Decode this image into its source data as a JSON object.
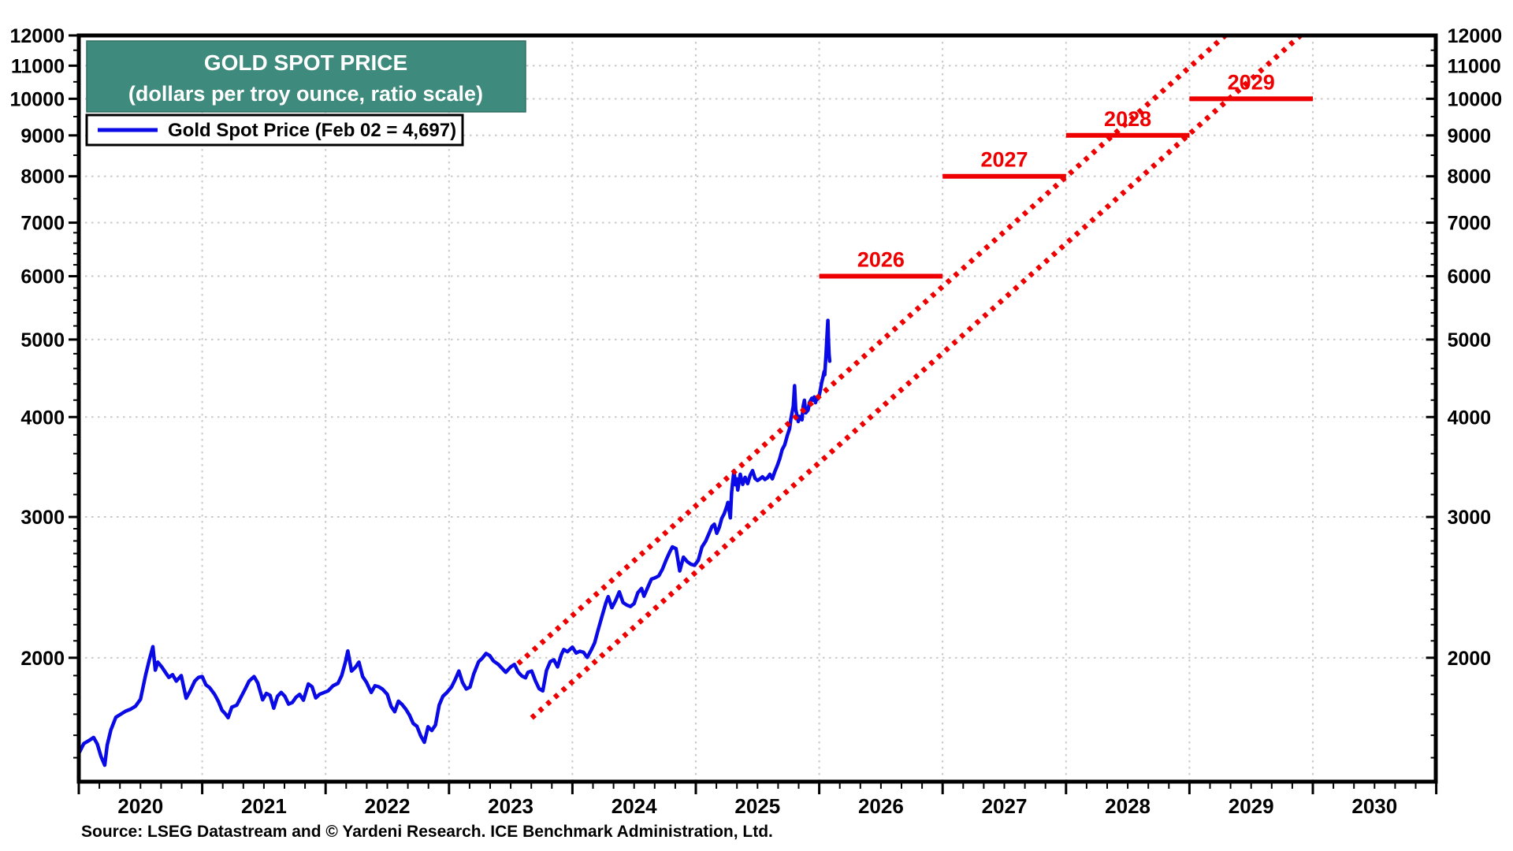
{
  "title": {
    "line1": "GOLD SPOT PRICE",
    "line2": "(dollars per troy ounce, ratio scale)"
  },
  "legend": {
    "label": "Gold Spot Price (Feb 02 = 4,697)"
  },
  "source": "Source: LSEG Datastream and © Yardeni Research. ICE Benchmark Administration, Ltd.",
  "colors": {
    "teal_box": "#3E8A7C",
    "teal_box_border": "#2E6E63",
    "line_blue": "#0A0AE6",
    "red": "#EE0000",
    "grid": "#C9C9C9",
    "axis": "#000000"
  },
  "chart_data": {
    "type": "line",
    "title": "GOLD SPOT PRICE",
    "subtitle": "(dollars per troy ounce, ratio scale)",
    "y_scale": "log",
    "ylim": [
      1400,
      12000
    ],
    "xlim": [
      2020,
      2031
    ],
    "grid": true,
    "legend_position": "top-left",
    "y_ticks": [
      2000,
      3000,
      4000,
      5000,
      6000,
      7000,
      8000,
      9000,
      10000,
      11000,
      12000
    ],
    "x_ticks": [
      2020,
      2021,
      2022,
      2023,
      2024,
      2025,
      2026,
      2027,
      2028,
      2029,
      2030
    ],
    "series": [
      {
        "name": "Gold Spot Price (Feb 02 = 4,697)",
        "last_point_label": "Feb 02 = 4,697",
        "points": [
          [
            2020.0,
            1518
          ],
          [
            2020.04,
            1562
          ],
          [
            2020.08,
            1575
          ],
          [
            2020.12,
            1590
          ],
          [
            2020.15,
            1560
          ],
          [
            2020.18,
            1505
          ],
          [
            2020.21,
            1468
          ],
          [
            2020.23,
            1555
          ],
          [
            2020.26,
            1625
          ],
          [
            2020.3,
            1685
          ],
          [
            2020.34,
            1700
          ],
          [
            2020.38,
            1715
          ],
          [
            2020.42,
            1725
          ],
          [
            2020.46,
            1740
          ],
          [
            2020.5,
            1775
          ],
          [
            2020.54,
            1900
          ],
          [
            2020.57,
            1985
          ],
          [
            2020.6,
            2065
          ],
          [
            2020.62,
            1930
          ],
          [
            2020.64,
            1975
          ],
          [
            2020.67,
            1950
          ],
          [
            2020.7,
            1920
          ],
          [
            2020.73,
            1890
          ],
          [
            2020.76,
            1905
          ],
          [
            2020.79,
            1870
          ],
          [
            2020.83,
            1900
          ],
          [
            2020.87,
            1780
          ],
          [
            2020.9,
            1815
          ],
          [
            2020.94,
            1870
          ],
          [
            2020.97,
            1890
          ],
          [
            2021.0,
            1895
          ],
          [
            2021.03,
            1850
          ],
          [
            2021.06,
            1835
          ],
          [
            2021.1,
            1800
          ],
          [
            2021.13,
            1765
          ],
          [
            2021.16,
            1720
          ],
          [
            2021.19,
            1700
          ],
          [
            2021.21,
            1683
          ],
          [
            2021.24,
            1735
          ],
          [
            2021.28,
            1745
          ],
          [
            2021.31,
            1780
          ],
          [
            2021.35,
            1830
          ],
          [
            2021.38,
            1870
          ],
          [
            2021.42,
            1895
          ],
          [
            2021.45,
            1860
          ],
          [
            2021.49,
            1772
          ],
          [
            2021.52,
            1805
          ],
          [
            2021.55,
            1795
          ],
          [
            2021.58,
            1730
          ],
          [
            2021.61,
            1790
          ],
          [
            2021.64,
            1810
          ],
          [
            2021.67,
            1790
          ],
          [
            2021.7,
            1750
          ],
          [
            2021.73,
            1758
          ],
          [
            2021.76,
            1785
          ],
          [
            2021.79,
            1800
          ],
          [
            2021.82,
            1770
          ],
          [
            2021.86,
            1855
          ],
          [
            2021.89,
            1840
          ],
          [
            2021.92,
            1782
          ],
          [
            2021.95,
            1800
          ],
          [
            2021.98,
            1808
          ],
          [
            2022.02,
            1818
          ],
          [
            2022.06,
            1845
          ],
          [
            2022.1,
            1858
          ],
          [
            2022.13,
            1900
          ],
          [
            2022.16,
            1975
          ],
          [
            2022.18,
            2040
          ],
          [
            2022.21,
            1925
          ],
          [
            2022.24,
            1945
          ],
          [
            2022.27,
            1975
          ],
          [
            2022.3,
            1895
          ],
          [
            2022.33,
            1865
          ],
          [
            2022.37,
            1810
          ],
          [
            2022.4,
            1845
          ],
          [
            2022.43,
            1840
          ],
          [
            2022.46,
            1828
          ],
          [
            2022.5,
            1800
          ],
          [
            2022.53,
            1740
          ],
          [
            2022.56,
            1712
          ],
          [
            2022.59,
            1765
          ],
          [
            2022.62,
            1748
          ],
          [
            2022.65,
            1725
          ],
          [
            2022.68,
            1695
          ],
          [
            2022.71,
            1655
          ],
          [
            2022.74,
            1642
          ],
          [
            2022.77,
            1598
          ],
          [
            2022.8,
            1568
          ],
          [
            2022.83,
            1640
          ],
          [
            2022.86,
            1622
          ],
          [
            2022.89,
            1648
          ],
          [
            2022.92,
            1745
          ],
          [
            2022.95,
            1790
          ],
          [
            2022.98,
            1808
          ],
          [
            2023.02,
            1838
          ],
          [
            2023.05,
            1878
          ],
          [
            2023.08,
            1925
          ],
          [
            2023.11,
            1862
          ],
          [
            2023.14,
            1828
          ],
          [
            2023.17,
            1838
          ],
          [
            2023.2,
            1908
          ],
          [
            2023.24,
            1978
          ],
          [
            2023.27,
            1998
          ],
          [
            2023.3,
            2025
          ],
          [
            2023.33,
            2012
          ],
          [
            2023.36,
            1982
          ],
          [
            2023.4,
            1962
          ],
          [
            2023.43,
            1940
          ],
          [
            2023.46,
            1918
          ],
          [
            2023.5,
            1948
          ],
          [
            2023.53,
            1962
          ],
          [
            2023.56,
            1920
          ],
          [
            2023.59,
            1898
          ],
          [
            2023.62,
            1888
          ],
          [
            2023.64,
            1918
          ],
          [
            2023.67,
            1925
          ],
          [
            2023.7,
            1872
          ],
          [
            2023.73,
            1830
          ],
          [
            2023.76,
            1818
          ],
          [
            2023.79,
            1928
          ],
          [
            2023.82,
            1978
          ],
          [
            2023.85,
            1988
          ],
          [
            2023.88,
            1948
          ],
          [
            2023.91,
            2018
          ],
          [
            2023.93,
            2048
          ],
          [
            2023.96,
            2035
          ],
          [
            2024.0,
            2062
          ],
          [
            2024.03,
            2028
          ],
          [
            2024.06,
            2038
          ],
          [
            2024.09,
            2032
          ],
          [
            2024.12,
            2002
          ],
          [
            2024.15,
            2042
          ],
          [
            2024.18,
            2088
          ],
          [
            2024.21,
            2172
          ],
          [
            2024.24,
            2255
          ],
          [
            2024.27,
            2340
          ],
          [
            2024.29,
            2385
          ],
          [
            2024.32,
            2310
          ],
          [
            2024.35,
            2358
          ],
          [
            2024.38,
            2418
          ],
          [
            2024.41,
            2345
          ],
          [
            2024.44,
            2328
          ],
          [
            2024.47,
            2318
          ],
          [
            2024.5,
            2338
          ],
          [
            2024.53,
            2412
          ],
          [
            2024.56,
            2442
          ],
          [
            2024.58,
            2388
          ],
          [
            2024.61,
            2448
          ],
          [
            2024.64,
            2508
          ],
          [
            2024.67,
            2518
          ],
          [
            2024.7,
            2532
          ],
          [
            2024.73,
            2582
          ],
          [
            2024.76,
            2652
          ],
          [
            2024.79,
            2715
          ],
          [
            2024.81,
            2752
          ],
          [
            2024.84,
            2738
          ],
          [
            2024.87,
            2568
          ],
          [
            2024.9,
            2672
          ],
          [
            2024.93,
            2638
          ],
          [
            2024.96,
            2618
          ],
          [
            2024.99,
            2610
          ],
          [
            2025.02,
            2648
          ],
          [
            2025.05,
            2752
          ],
          [
            2025.08,
            2798
          ],
          [
            2025.11,
            2868
          ],
          [
            2025.13,
            2918
          ],
          [
            2025.15,
            2938
          ],
          [
            2025.17,
            2862
          ],
          [
            2025.19,
            2912
          ],
          [
            2025.21,
            2988
          ],
          [
            2025.23,
            3028
          ],
          [
            2025.25,
            3088
          ],
          [
            2025.26,
            3128
          ],
          [
            2025.28,
            2992
          ],
          [
            2025.29,
            3218
          ],
          [
            2025.3,
            3332
          ],
          [
            2025.31,
            3428
          ],
          [
            2025.32,
            3292
          ],
          [
            2025.33,
            3348
          ],
          [
            2025.34,
            3242
          ],
          [
            2025.36,
            3392
          ],
          [
            2025.38,
            3295
          ],
          [
            2025.4,
            3362
          ],
          [
            2025.42,
            3302
          ],
          [
            2025.44,
            3382
          ],
          [
            2025.46,
            3428
          ],
          [
            2025.48,
            3352
          ],
          [
            2025.5,
            3332
          ],
          [
            2025.52,
            3348
          ],
          [
            2025.54,
            3368
          ],
          [
            2025.56,
            3342
          ],
          [
            2025.58,
            3358
          ],
          [
            2025.6,
            3392
          ],
          [
            2025.62,
            3348
          ],
          [
            2025.64,
            3418
          ],
          [
            2025.66,
            3478
          ],
          [
            2025.68,
            3548
          ],
          [
            2025.7,
            3642
          ],
          [
            2025.72,
            3692
          ],
          [
            2025.74,
            3788
          ],
          [
            2025.76,
            3868
          ],
          [
            2025.77,
            3978
          ],
          [
            2025.79,
            4128
          ],
          [
            2025.8,
            4378
          ],
          [
            2025.81,
            4088
          ],
          [
            2025.83,
            3948
          ],
          [
            2025.84,
            4008
          ],
          [
            2025.86,
            3968
          ],
          [
            2025.87,
            4122
          ],
          [
            2025.88,
            4198
          ],
          [
            2025.89,
            4048
          ],
          [
            2025.91,
            4082
          ],
          [
            2025.92,
            4168
          ],
          [
            2025.94,
            4222
          ],
          [
            2025.95,
            4198
          ],
          [
            2025.96,
            4238
          ],
          [
            2025.97,
            4168
          ],
          [
            2025.98,
            4228
          ],
          [
            2025.99,
            4212
          ],
          [
            2026.0,
            4258
          ],
          [
            2026.01,
            4332
          ],
          [
            2026.02,
            4418
          ],
          [
            2026.03,
            4482
          ],
          [
            2026.04,
            4562
          ],
          [
            2026.045,
            4518
          ],
          [
            2026.05,
            4652
          ],
          [
            2026.055,
            4782
          ],
          [
            2026.06,
            4952
          ],
          [
            2026.065,
            5122
          ],
          [
            2026.07,
            5283
          ],
          [
            2026.075,
            4998
          ],
          [
            2026.08,
            4788
          ],
          [
            2026.085,
            4697
          ]
        ]
      }
    ],
    "trend_channel": {
      "style": "dotted",
      "upper": {
        "from": [
          2023.56,
          1966
        ],
        "to": [
          2029.29,
          12000
        ]
      },
      "lower": {
        "from": [
          2023.67,
          1682
        ],
        "to": [
          2029.9,
          12000
        ]
      }
    },
    "forecasts": [
      {
        "label": "2026",
        "value": 6000,
        "from": 2026,
        "to": 2027
      },
      {
        "label": "2027",
        "value": 8000,
        "from": 2027,
        "to": 2028
      },
      {
        "label": "2028",
        "value": 9000,
        "from": 2028,
        "to": 2029
      },
      {
        "label": "2029",
        "value": 10000,
        "from": 2029,
        "to": 2030
      }
    ]
  }
}
